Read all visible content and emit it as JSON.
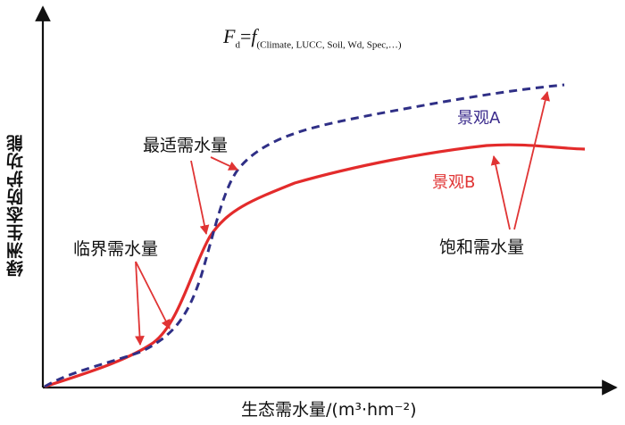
{
  "formula": {
    "F": "F",
    "d": "d",
    "eq": "=",
    "f": "f",
    "args": "(Climate, LUCC, Soil, Wd, Spec,…)"
  },
  "axes": {
    "ylabel": "绿洲生态防护功能",
    "xlabel": "生态需水量/(m³·hm⁻²)"
  },
  "labels": {
    "optimal": "最适需水量",
    "critical": "临界需水量",
    "saturation": "饱和需水量",
    "landscape_a": "景观A",
    "landscape_b": "景观B"
  },
  "colors": {
    "landscape_a": "#2f2f86",
    "landscape_b": "#e32b2b",
    "arrow": "#e03434",
    "axis": "#111111"
  }
}
